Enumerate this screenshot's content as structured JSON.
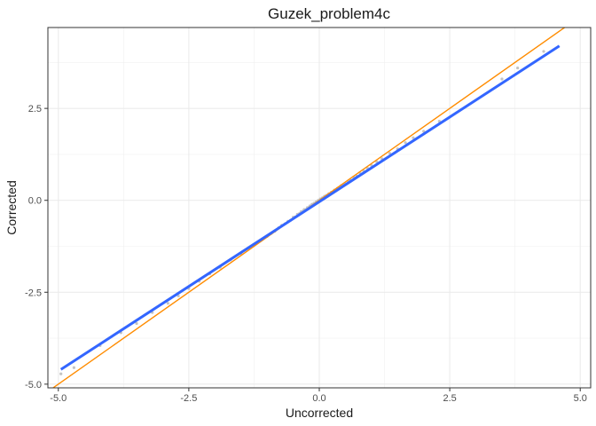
{
  "chart_data": {
    "type": "scatter",
    "title": "Guzek_problem4c",
    "xlabel": "Uncorrected",
    "ylabel": "Corrected",
    "xlim": [
      -5.2,
      5.2
    ],
    "ylim": [
      -5.1,
      4.7
    ],
    "x_ticks": [
      -5.0,
      -2.5,
      0.0,
      2.5,
      5.0
    ],
    "x_tick_labels": [
      "-5.0",
      "-2.5",
      "0.0",
      "2.5",
      "5.0"
    ],
    "y_ticks": [
      -5.0,
      -2.5,
      0.0,
      2.5
    ],
    "y_tick_labels": [
      "-5.0",
      "-2.5",
      "0.0",
      "2.5"
    ],
    "grid": true,
    "points": {
      "color": "#bdbdbd",
      "x": [
        -4.95,
        -4.7,
        -4.2,
        -3.8,
        -3.5,
        -3.2,
        -2.9,
        -2.7,
        -2.5,
        -2.3,
        -2.1,
        -1.9,
        -1.7,
        -1.5,
        -1.35,
        -1.2,
        -1.1,
        -1.0,
        -0.92,
        -0.85,
        -0.78,
        -0.72,
        -0.66,
        -0.6,
        -0.55,
        -0.5,
        -0.46,
        -0.42,
        -0.38,
        -0.35,
        -0.32,
        -0.29,
        -0.26,
        -0.23,
        -0.2,
        -0.18,
        -0.16,
        -0.14,
        -0.12,
        -0.1,
        -0.08,
        -0.06,
        -0.04,
        -0.02,
        0.0,
        0.02,
        0.04,
        0.06,
        0.08,
        0.1,
        0.12,
        0.14,
        0.16,
        0.18,
        0.2,
        0.23,
        0.26,
        0.29,
        0.32,
        0.35,
        0.38,
        0.42,
        0.46,
        0.5,
        0.55,
        0.6,
        0.66,
        0.72,
        0.78,
        0.85,
        0.92,
        1.0,
        1.1,
        1.2,
        1.35,
        1.5,
        1.65,
        1.8,
        2.0,
        2.3,
        3.5,
        3.8,
        4.3
      ],
      "y": [
        -4.72,
        -4.55,
        -3.95,
        -3.6,
        -3.35,
        -3.05,
        -2.8,
        -2.6,
        -2.4,
        -2.2,
        -2.0,
        -1.82,
        -1.62,
        -1.45,
        -1.3,
        -1.17,
        -1.07,
        -0.98,
        -0.9,
        -0.84,
        -0.75,
        -0.68,
        -0.64,
        -0.57,
        -0.54,
        -0.46,
        -0.45,
        -0.38,
        -0.36,
        -0.31,
        -0.3,
        -0.25,
        -0.25,
        -0.2,
        -0.19,
        -0.15,
        -0.16,
        -0.11,
        -0.12,
        -0.08,
        -0.09,
        -0.04,
        -0.05,
        0.0,
        -0.02,
        0.04,
        0.02,
        0.07,
        0.05,
        0.11,
        0.09,
        0.14,
        0.12,
        0.18,
        0.16,
        0.22,
        0.22,
        0.28,
        0.28,
        0.33,
        0.34,
        0.4,
        0.42,
        0.46,
        0.52,
        0.55,
        0.63,
        0.66,
        0.75,
        0.8,
        0.88,
        0.95,
        1.05,
        1.13,
        1.28,
        1.4,
        1.57,
        1.7,
        1.88,
        2.15,
        3.3,
        3.6,
        4.05
      ]
    },
    "lines": [
      {
        "kind": "identity",
        "color": "#ff8c00",
        "x": [
          -5.2,
          5.2
        ],
        "y": [
          -5.2,
          5.2
        ]
      },
      {
        "kind": "fit",
        "color": "#3366ff",
        "x": [
          -4.95,
          4.6
        ],
        "y": [
          -4.6,
          4.2
        ]
      }
    ]
  }
}
